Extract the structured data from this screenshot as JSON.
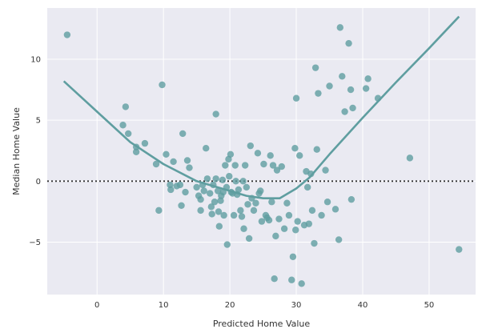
{
  "chart_data": {
    "type": "scatter",
    "title": "",
    "xlabel": "Predicted Home Value",
    "ylabel": "Median Home Value",
    "xlim": [
      -7.5,
      57
    ],
    "ylim": [
      -9.3,
      14.2
    ],
    "xticks": [
      0,
      10,
      20,
      30,
      40,
      50
    ],
    "yticks": [
      -5,
      0,
      5,
      10
    ],
    "grid": true,
    "legend": "none",
    "colors": {
      "background": "#EAEAF2",
      "grid": "#FFFFFF",
      "points": "#5F9EA0",
      "curve": "#5F9EA0",
      "reference_line": "#333333"
    },
    "reference_line": {
      "y": 0,
      "style": "dotted"
    },
    "points": [
      [
        -4.5,
        12.0
      ],
      [
        4.3,
        6.1
      ],
      [
        3.9,
        4.6
      ],
      [
        4.7,
        3.9
      ],
      [
        5.9,
        2.8
      ],
      [
        5.9,
        2.4
      ],
      [
        7.2,
        3.1
      ],
      [
        8.9,
        1.4
      ],
      [
        9.3,
        -2.4
      ],
      [
        9.8,
        7.9
      ],
      [
        10.4,
        2.2
      ],
      [
        11.0,
        -0.3
      ],
      [
        11.1,
        -0.7
      ],
      [
        11.5,
        1.6
      ],
      [
        12.0,
        -0.4
      ],
      [
        12.5,
        -0.3
      ],
      [
        12.7,
        -2.0
      ],
      [
        12.9,
        3.9
      ],
      [
        13.3,
        -0.9
      ],
      [
        13.6,
        1.7
      ],
      [
        13.9,
        1.1
      ],
      [
        15.0,
        -0.5
      ],
      [
        15.3,
        -1.2
      ],
      [
        15.6,
        -1.5
      ],
      [
        15.6,
        -2.4
      ],
      [
        15.9,
        -0.3
      ],
      [
        16.1,
        -0.8
      ],
      [
        16.4,
        2.7
      ],
      [
        16.6,
        0.2
      ],
      [
        17.0,
        -1.0
      ],
      [
        17.2,
        -2.1
      ],
      [
        17.3,
        -2.7
      ],
      [
        17.5,
        -0.3
      ],
      [
        17.7,
        -1.7
      ],
      [
        17.9,
        5.5
      ],
      [
        17.9,
        0.2
      ],
      [
        18.2,
        -0.8
      ],
      [
        18.3,
        -2.5
      ],
      [
        18.4,
        -3.7
      ],
      [
        18.6,
        -1.6
      ],
      [
        18.7,
        -1.2
      ],
      [
        18.9,
        0.1
      ],
      [
        19.0,
        -0.9
      ],
      [
        19.1,
        -2.8
      ],
      [
        19.3,
        1.3
      ],
      [
        19.5,
        -0.5
      ],
      [
        19.6,
        -5.2
      ],
      [
        19.8,
        1.8
      ],
      [
        19.9,
        0.4
      ],
      [
        20.1,
        2.2
      ],
      [
        20.2,
        -0.9
      ],
      [
        20.4,
        -1.0
      ],
      [
        20.6,
        -2.8
      ],
      [
        20.8,
        1.3
      ],
      [
        20.9,
        0.0
      ],
      [
        21.1,
        -1.1
      ],
      [
        21.3,
        -0.7
      ],
      [
        21.6,
        -2.4
      ],
      [
        21.8,
        -2.9
      ],
      [
        22.0,
        0.0
      ],
      [
        22.1,
        -3.9
      ],
      [
        22.3,
        1.3
      ],
      [
        22.5,
        -0.5
      ],
      [
        22.7,
        -1.9
      ],
      [
        22.9,
        -4.7
      ],
      [
        23.1,
        2.9
      ],
      [
        23.3,
        -1.4
      ],
      [
        23.6,
        -2.4
      ],
      [
        23.9,
        -1.8
      ],
      [
        24.2,
        2.3
      ],
      [
        24.4,
        -1.0
      ],
      [
        24.6,
        -0.8
      ],
      [
        24.8,
        -3.3
      ],
      [
        25.1,
        1.4
      ],
      [
        25.4,
        -2.8
      ],
      [
        25.6,
        -3.0
      ],
      [
        25.9,
        -3.2
      ],
      [
        26.1,
        2.1
      ],
      [
        26.3,
        -1.7
      ],
      [
        26.5,
        1.3
      ],
      [
        26.7,
        -8.0
      ],
      [
        26.9,
        -4.5
      ],
      [
        27.1,
        0.9
      ],
      [
        27.4,
        -3.1
      ],
      [
        27.8,
        1.2
      ],
      [
        28.2,
        -3.9
      ],
      [
        28.6,
        -1.8
      ],
      [
        28.9,
        -2.8
      ],
      [
        29.3,
        -8.1
      ],
      [
        29.5,
        -6.2
      ],
      [
        29.8,
        2.7
      ],
      [
        29.9,
        -4.0
      ],
      [
        30.0,
        6.8
      ],
      [
        30.2,
        -3.3
      ],
      [
        30.5,
        2.1
      ],
      [
        30.8,
        -8.4
      ],
      [
        31.2,
        -3.6
      ],
      [
        31.5,
        0.8
      ],
      [
        31.7,
        -0.5
      ],
      [
        31.9,
        -3.5
      ],
      [
        32.2,
        0.6
      ],
      [
        32.4,
        -2.4
      ],
      [
        32.7,
        -5.1
      ],
      [
        32.9,
        9.3
      ],
      [
        33.1,
        2.6
      ],
      [
        33.3,
        7.2
      ],
      [
        33.8,
        -2.8
      ],
      [
        34.4,
        0.9
      ],
      [
        34.7,
        -1.7
      ],
      [
        35.0,
        7.8
      ],
      [
        35.9,
        -2.3
      ],
      [
        36.4,
        -4.8
      ],
      [
        36.6,
        12.6
      ],
      [
        36.9,
        8.6
      ],
      [
        37.3,
        5.7
      ],
      [
        37.9,
        11.3
      ],
      [
        38.2,
        7.5
      ],
      [
        38.3,
        -1.5
      ],
      [
        38.5,
        6.0
      ],
      [
        40.5,
        7.6
      ],
      [
        40.8,
        8.4
      ],
      [
        42.3,
        6.8
      ],
      [
        47.1,
        1.9
      ],
      [
        54.5,
        -5.6
      ]
    ],
    "curve": [
      [
        -5.0,
        8.2
      ],
      [
        0.0,
        5.7
      ],
      [
        5.0,
        3.2
      ],
      [
        10.0,
        1.4
      ],
      [
        15.0,
        0.0
      ],
      [
        20.0,
        -0.8
      ],
      [
        22.5,
        -1.2
      ],
      [
        25.0,
        -1.4
      ],
      [
        27.5,
        -1.4
      ],
      [
        30.0,
        -0.6
      ],
      [
        32.0,
        0.3
      ],
      [
        35.0,
        2.2
      ],
      [
        40.0,
        5.2
      ],
      [
        45.0,
        8.1
      ],
      [
        50.0,
        10.9
      ],
      [
        54.5,
        13.5
      ]
    ]
  }
}
